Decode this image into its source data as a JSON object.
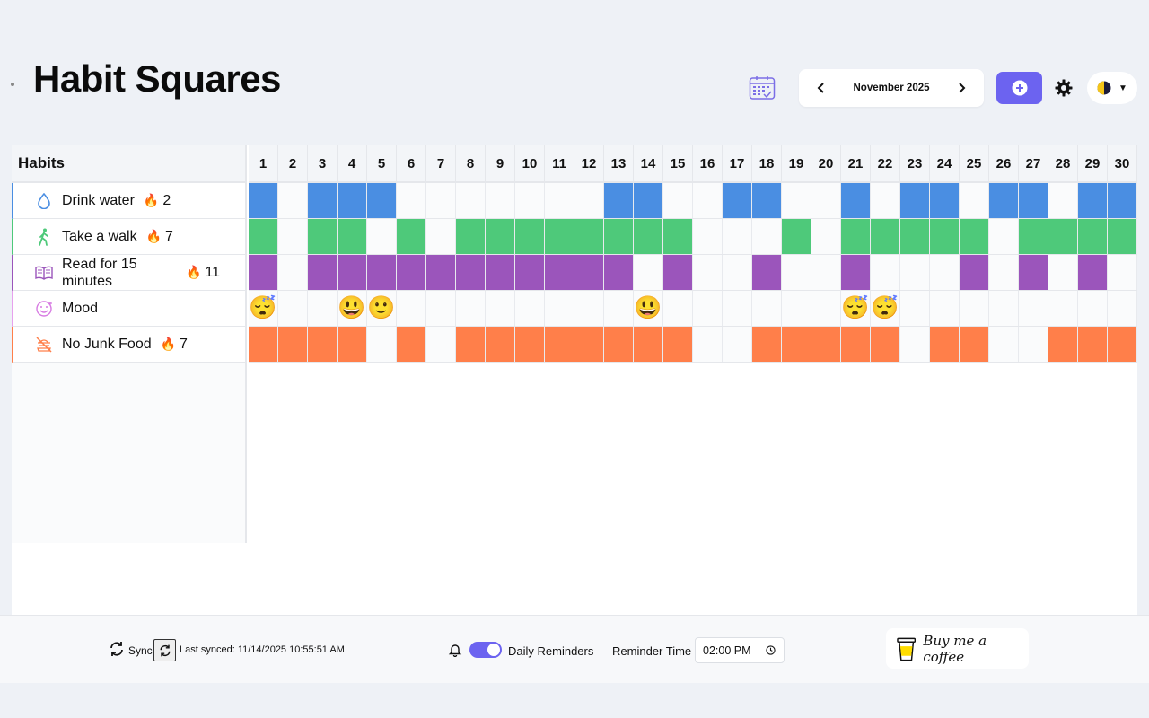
{
  "app": {
    "title": "Habit Squares"
  },
  "header": {
    "month": "November 2025"
  },
  "grid": {
    "header_label": "Habits",
    "days": [
      "1",
      "2",
      "3",
      "4",
      "5",
      "6",
      "7",
      "8",
      "9",
      "10",
      "11",
      "12",
      "13",
      "14",
      "15",
      "16",
      "17",
      "18",
      "19",
      "20",
      "21",
      "22",
      "23",
      "24",
      "25",
      "26",
      "27",
      "28",
      "29",
      "30"
    ]
  },
  "habits": [
    {
      "name": "Drink water",
      "streak": "2",
      "icon": "water-drop-icon",
      "color": "#4a8ee2",
      "done": [
        1,
        3,
        4,
        5,
        13,
        14,
        17,
        18,
        21,
        23,
        24,
        26,
        27,
        29,
        30
      ]
    },
    {
      "name": "Take a walk",
      "streak": "7",
      "icon": "walking-person-icon",
      "color": "#4ec97a",
      "done": [
        1,
        3,
        4,
        6,
        8,
        9,
        10,
        11,
        12,
        13,
        14,
        15,
        19,
        21,
        22,
        23,
        24,
        25,
        27,
        28,
        29,
        30
      ]
    },
    {
      "name": "Read for 15 minutes",
      "streak": "11",
      "icon": "book-icon",
      "color": "#9b55bb",
      "done": [
        1,
        3,
        4,
        5,
        6,
        7,
        8,
        9,
        10,
        11,
        12,
        13,
        15,
        18,
        21,
        25,
        27,
        29
      ]
    },
    {
      "name": "Mood",
      "streak": "",
      "icon": "mood-face-icon",
      "color": "#e7a1ee",
      "moods": {
        "1": "😴",
        "4": "😃",
        "5": "🙂",
        "14": "😃",
        "21": "😴",
        "22": "😴"
      }
    },
    {
      "name": "No Junk Food",
      "streak": "7",
      "icon": "no-junk-food-icon",
      "color": "#ff7f4a",
      "done": [
        1,
        2,
        3,
        4,
        6,
        8,
        9,
        10,
        11,
        12,
        13,
        14,
        15,
        18,
        19,
        20,
        21,
        22,
        24,
        25,
        28,
        29,
        30
      ]
    }
  ],
  "footer": {
    "sync_label": "Sync",
    "last_synced": "Last synced: 11/14/2025 10:55:51 AM",
    "reminders_label": "Daily Reminders",
    "reminders_on": true,
    "reminder_time_label": "Reminder Time",
    "reminder_time": "02:00 PM",
    "coffee_label": "Buy me a coffee"
  }
}
